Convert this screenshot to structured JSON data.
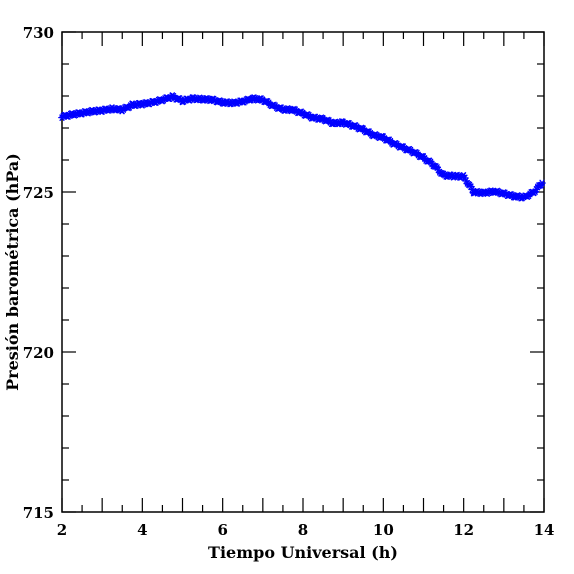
{
  "chart_data": {
    "type": "scatter",
    "title": "",
    "xlabel": "Tiempo Universal (h)",
    "ylabel": "Presión barométrica (hPa)",
    "xlim": [
      2,
      14
    ],
    "ylim": [
      715,
      730
    ],
    "xticks": [
      2,
      4,
      6,
      8,
      10,
      12,
      14
    ],
    "yticks": [
      715,
      720,
      725,
      730
    ],
    "grid": false,
    "legend": "none",
    "marker": "asterisk",
    "color": "#0000ff",
    "series": [
      {
        "x": [
          2.0,
          2.25,
          2.5,
          2.75,
          3.0,
          3.25,
          3.5,
          3.75,
          4.0,
          4.25,
          4.5,
          4.75,
          5.0,
          5.25,
          5.5,
          5.75,
          6.0,
          6.25,
          6.5,
          6.75,
          7.0,
          7.25,
          7.5,
          7.75,
          8.0,
          8.25,
          8.5,
          8.75,
          9.0,
          9.25,
          9.5,
          9.75,
          10.0,
          10.25,
          10.5,
          10.75,
          11.0,
          11.25,
          11.5,
          11.75,
          12.0,
          12.25,
          12.5,
          12.75,
          13.0,
          13.25,
          13.5,
          13.75,
          13.95
        ],
        "y": [
          727.35,
          727.42,
          727.47,
          727.52,
          727.55,
          727.6,
          727.57,
          727.72,
          727.75,
          727.8,
          727.88,
          727.98,
          727.85,
          727.92,
          727.9,
          727.88,
          727.8,
          727.78,
          727.83,
          727.92,
          727.88,
          727.7,
          727.58,
          727.57,
          727.45,
          727.32,
          727.28,
          727.15,
          727.17,
          727.07,
          726.95,
          726.78,
          726.7,
          726.52,
          726.38,
          726.25,
          726.07,
          725.85,
          725.52,
          725.5,
          725.48,
          725.0,
          724.97,
          725.02,
          724.95,
          724.87,
          724.83,
          725.0,
          725.28
        ]
      }
    ]
  }
}
